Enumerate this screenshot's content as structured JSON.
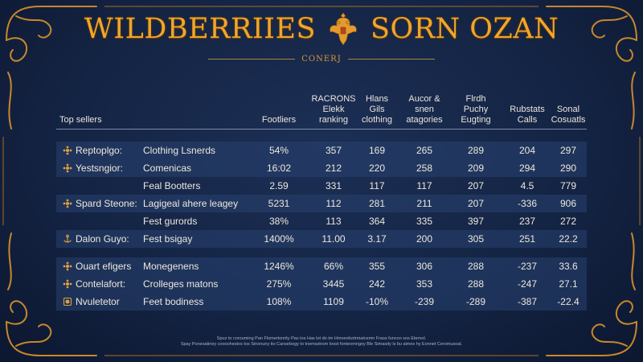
{
  "title": {
    "left": "WILDBERRIIES",
    "right": "SORN OZAN"
  },
  "subtitle": "CONERJ",
  "table": {
    "headers": [
      "Top sellers",
      "Footliers",
      "RACRONS\nElekk\nranking",
      "Hlans\nGils\nclothing",
      "Aucor &\nsnen\natagories",
      "Flrdh\nPuchy\nEugting",
      "Rubstats\nCalls",
      "Sonal\nCosuatls"
    ],
    "rows": [
      {
        "seller": "Reptoplgo:",
        "icon": "flower-ornament-icon",
        "category": "Clothing Lsnerds",
        "values": [
          "54%",
          "357",
          "169",
          "265",
          "289",
          "204",
          "297"
        ]
      },
      {
        "seller": "Yestsngior:",
        "icon": "flower-ornament-icon",
        "category": "Comenicas",
        "values": [
          "16:02",
          "212",
          "220",
          "258",
          "209",
          "294",
          "290"
        ]
      },
      {
        "seller": "",
        "icon": "",
        "category": "Feal Bootters",
        "values": [
          "2.59",
          "331",
          "117",
          "117",
          "207",
          "4.5",
          "779"
        ]
      },
      {
        "seller": "Spard Steone:",
        "icon": "flower-ornament-icon",
        "category": "Lagigeal ahere leagey",
        "values": [
          "5231",
          "112",
          "281",
          "211",
          "207",
          "-336",
          "906"
        ]
      },
      {
        "seller": "",
        "icon": "",
        "category": "Fest gurords",
        "values": [
          "38%",
          "113",
          "364",
          "335",
          "397",
          "237",
          "272"
        ]
      },
      {
        "seller": "Dalon Guyo:",
        "icon": "anchor-ornament-icon",
        "category": "Fest bsigay",
        "values": [
          "1400%",
          "11.00",
          "3.17",
          "200",
          "305",
          "251",
          "22.2"
        ]
      },
      {
        "seller": "Ouart efigers",
        "icon": "flower-ornament-icon",
        "category": "Monegenens",
        "values": [
          "1246%",
          "66%",
          "355",
          "306",
          "288",
          "-237",
          "33.6"
        ]
      },
      {
        "seller": "Contelafort:",
        "icon": "flower-ornament-icon",
        "category": "Crolleges matons",
        "values": [
          "275%",
          "3445",
          "242",
          "353",
          "288",
          "-247",
          "27.1"
        ]
      },
      {
        "seller": "Nvuletetor",
        "icon": "square-ornament-icon",
        "category": "Feet bodiness",
        "values": [
          "108%",
          "1109",
          "-10%",
          "-239",
          "-289",
          "-387",
          "-22.4"
        ]
      }
    ]
  },
  "footnote": "Spuz to corouming Pan Flomertonrity Pas tos Has lot do tm Hmoerdurtrmatcemn Frass funcon sos Eternol.\nSpay Ponesatiney coooohestos tos Sinonuny tio Cansebogy to tnemsstrom loost fonteomngoy Ble Simasdy ls bu aimes hy Eonnet Ceromusoal."
}
